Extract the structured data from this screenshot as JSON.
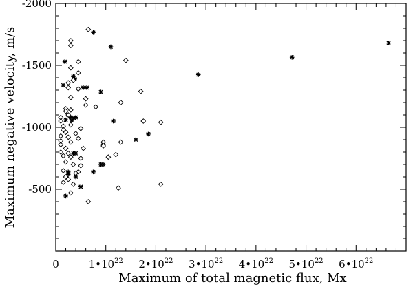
{
  "chart_data": {
    "type": "scatter",
    "title": "",
    "xlabel": "Maximum of total magnetic flux, Mx",
    "ylabel": "Maximum negative velocity, m/s",
    "xlim": [
      0,
      7e+22
    ],
    "ylim": [
      0,
      -2000
    ],
    "x_ticks": [
      {
        "value": 1e+22,
        "mantissa": "1",
        "dot": "•",
        "base": "10",
        "exp": "22"
      },
      {
        "value": 2e+22,
        "mantissa": "2",
        "dot": "•",
        "base": "10",
        "exp": "22"
      },
      {
        "value": 3e+22,
        "mantissa": "3",
        "dot": "•",
        "base": "10",
        "exp": "22"
      },
      {
        "value": 4e+22,
        "mantissa": "4",
        "dot": "•",
        "base": "10",
        "exp": "22"
      },
      {
        "value": 5e+22,
        "mantissa": "5",
        "dot": "•",
        "base": "10",
        "exp": "22"
      },
      {
        "value": 6e+22,
        "mantissa": "6",
        "dot": "•",
        "base": "10",
        "exp": "22"
      }
    ],
    "x_zero_label": "0",
    "y_ticks": [
      {
        "value": -500,
        "label": "-500"
      },
      {
        "value": -1000,
        "label": "-1000"
      },
      {
        "value": -1500,
        "label": "-1500"
      },
      {
        "value": -2000,
        "label": "-2000"
      }
    ],
    "series": [
      {
        "marker": "star",
        "points": [
          [
            7.5e+21,
            -1765
          ],
          [
            1.1e+22,
            -1650
          ],
          [
            2.85e+22,
            -1425
          ],
          [
            4.72e+22,
            -1565
          ],
          [
            6.65e+22,
            -1680
          ],
          [
            1.5e+21,
            -1340
          ],
          [
            1.8e+21,
            -1530
          ],
          [
            3.5e+21,
            -1410
          ],
          [
            3.8e+21,
            -1390
          ],
          [
            5.5e+21,
            -1320
          ],
          [
            6.2e+21,
            -1320
          ],
          [
            9e+21,
            -1285
          ],
          [
            2.5e+21,
            -1100
          ],
          [
            3e+21,
            -1080
          ],
          [
            3.6e+21,
            -1075
          ],
          [
            4e+21,
            -1080
          ],
          [
            2e+21,
            -1060
          ],
          [
            3.2e+21,
            -1055
          ],
          [
            1.15e+22,
            -1050
          ],
          [
            1.6e+22,
            -900
          ],
          [
            1.85e+22,
            -945
          ],
          [
            9.5e+21,
            -860
          ],
          [
            9e+21,
            -700
          ],
          [
            9.5e+21,
            -700
          ],
          [
            3.5e+21,
            -790
          ],
          [
            4e+21,
            -790
          ],
          [
            2.5e+21,
            -640
          ],
          [
            2.5e+21,
            -620
          ],
          [
            7.5e+21,
            -640
          ],
          [
            5e+21,
            -520
          ],
          [
            2e+21,
            -445
          ],
          [
            4e+21,
            -600
          ]
        ]
      },
      {
        "marker": "diamond",
        "points": [
          [
            6.5e+21,
            -1790
          ],
          [
            3e+21,
            -1700
          ],
          [
            3e+21,
            -1660
          ],
          [
            4.5e+21,
            -1530
          ],
          [
            1.4e+22,
            -1540
          ],
          [
            3e+21,
            -1480
          ],
          [
            4.5e+21,
            -1440
          ],
          [
            3.5e+21,
            -1380
          ],
          [
            2.5e+21,
            -1360
          ],
          [
            2.5e+21,
            -1320
          ],
          [
            4.5e+21,
            -1310
          ],
          [
            1.7e+22,
            -1290
          ],
          [
            3e+21,
            -1240
          ],
          [
            6e+21,
            -1230
          ],
          [
            1.3e+22,
            -1200
          ],
          [
            6e+21,
            -1180
          ],
          [
            2e+21,
            -1150
          ],
          [
            3e+21,
            -1140
          ],
          [
            2e+21,
            -1130
          ],
          [
            8e+21,
            -1165
          ],
          [
            2.5e+21,
            -1100
          ],
          [
            1e+21,
            -1080
          ],
          [
            1e+21,
            -1050
          ],
          [
            3e+21,
            -1020
          ],
          [
            1.5e+21,
            -1010
          ],
          [
            1.5e+21,
            -980
          ],
          [
            5e+21,
            -990
          ],
          [
            1.75e+22,
            -1050
          ],
          [
            2.1e+22,
            -1040
          ],
          [
            2e+21,
            -960
          ],
          [
            4e+21,
            -950
          ],
          [
            1e+21,
            -930
          ],
          [
            2.5e+21,
            -920
          ],
          [
            4.5e+21,
            -910
          ],
          [
            1e+21,
            -890
          ],
          [
            3e+21,
            -880
          ],
          [
            1.3e+22,
            -880
          ],
          [
            1e+21,
            -860
          ],
          [
            9.5e+21,
            -880
          ],
          [
            2e+21,
            -830
          ],
          [
            5.5e+21,
            -830
          ],
          [
            9.5e+21,
            -850
          ],
          [
            1e+21,
            -800
          ],
          [
            2.5e+21,
            -790
          ],
          [
            1.2e+22,
            -780
          ],
          [
            1.5e+21,
            -770
          ],
          [
            3e+21,
            -760
          ],
          [
            1.05e+22,
            -760
          ],
          [
            5e+21,
            -750
          ],
          [
            2e+21,
            -720
          ],
          [
            3.5e+21,
            -700
          ],
          [
            5e+21,
            -690
          ],
          [
            1.5e+21,
            -650
          ],
          [
            4.5e+21,
            -640
          ],
          [
            4e+21,
            -630
          ],
          [
            2e+21,
            -600
          ],
          [
            2.5e+21,
            -580
          ],
          [
            1.5e+21,
            -555
          ],
          [
            3.5e+21,
            -540
          ],
          [
            1.25e+22,
            -510
          ],
          [
            2.1e+22,
            -540
          ],
          [
            3e+21,
            -470
          ],
          [
            6.5e+21,
            -400
          ]
        ]
      }
    ],
    "grid": false,
    "legend": "none"
  }
}
